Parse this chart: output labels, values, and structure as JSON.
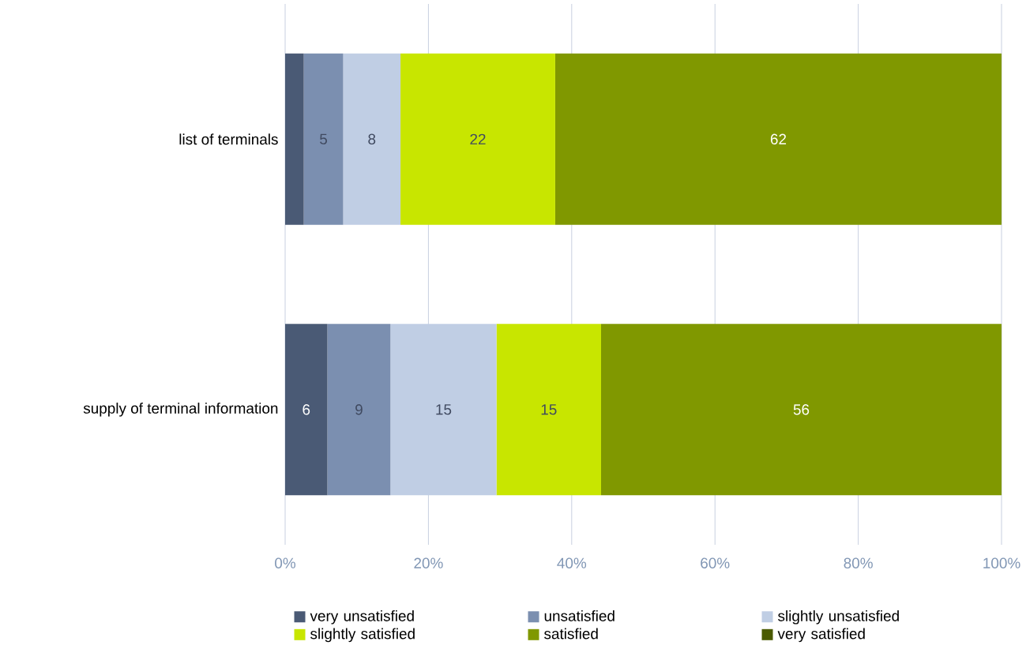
{
  "chart_data": {
    "type": "bar",
    "orientation": "horizontal",
    "stacked": true,
    "categories": [
      "list of terminals",
      "supply of terminal information"
    ],
    "series": [
      {
        "name": "very unsatisfied",
        "color": "#4a5a75",
        "values": [
          2.6,
          5.9
        ],
        "value_labels": [
          null,
          "6"
        ]
      },
      {
        "name": "unsatisfied",
        "color": "#7b8fb0",
        "values": [
          5.5,
          8.8
        ],
        "value_labels": [
          "5",
          "9"
        ]
      },
      {
        "name": "slightly unsatisfied",
        "color": "#c0cee4",
        "values": [
          8.0,
          14.8
        ],
        "value_labels": [
          "8",
          "15"
        ]
      },
      {
        "name": "slightly satisfied",
        "color": "#c8e600",
        "values": [
          21.6,
          14.6
        ],
        "value_labels": [
          "22",
          "15"
        ]
      },
      {
        "name": "satisfied",
        "color": "#809800",
        "values": [
          62.3,
          55.9
        ],
        "value_labels": [
          "62",
          "56"
        ]
      },
      {
        "name": "very satisfied",
        "color": "#4a5a00",
        "values": [
          0,
          0
        ],
        "value_labels": [
          null,
          null
        ]
      }
    ],
    "xlim": [
      0,
      100
    ],
    "xticks": [
      {
        "value": 0,
        "label": "0%"
      },
      {
        "value": 20,
        "label": "20%"
      },
      {
        "value": 40,
        "label": "40%"
      },
      {
        "value": 60,
        "label": "60%"
      },
      {
        "value": 80,
        "label": "80%"
      },
      {
        "value": 100,
        "label": "100%"
      }
    ],
    "grid": "x",
    "legend": "bottom"
  }
}
